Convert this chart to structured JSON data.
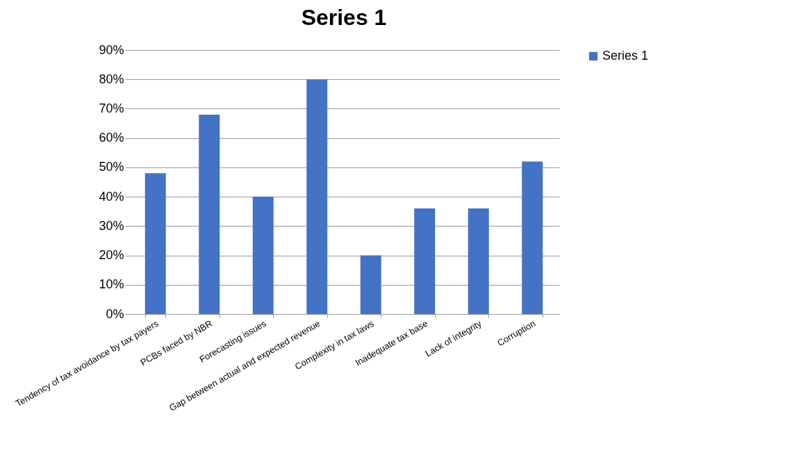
{
  "chart_data": {
    "type": "bar",
    "title": "Series 1",
    "categories": [
      "Tendency of tax avoidance by tax payers",
      "PCBs faced by NBR",
      "Forecasting issues",
      "Gap between actual and expected revenue",
      "Complexity in tax laws",
      "Inadequate tax base",
      "Lack of integrity",
      "Corruption"
    ],
    "series": [
      {
        "name": "Series 1",
        "color": "#4472c4",
        "values": [
          48,
          68,
          40,
          80,
          20,
          36,
          36,
          52
        ]
      }
    ],
    "ylim": [
      0,
      90
    ],
    "yticks": [
      {
        "value": 0,
        "label": "0%"
      },
      {
        "value": 10,
        "label": "10%"
      },
      {
        "value": 20,
        "label": "20%"
      },
      {
        "value": 30,
        "label": "30%"
      },
      {
        "value": 40,
        "label": "40%"
      },
      {
        "value": 50,
        "label": "50%"
      },
      {
        "value": 60,
        "label": "60%"
      },
      {
        "value": 70,
        "label": "70%"
      },
      {
        "value": 80,
        "label": "80%"
      },
      {
        "value": 90,
        "label": "90%"
      }
    ],
    "grid": "y",
    "legend": "right"
  }
}
